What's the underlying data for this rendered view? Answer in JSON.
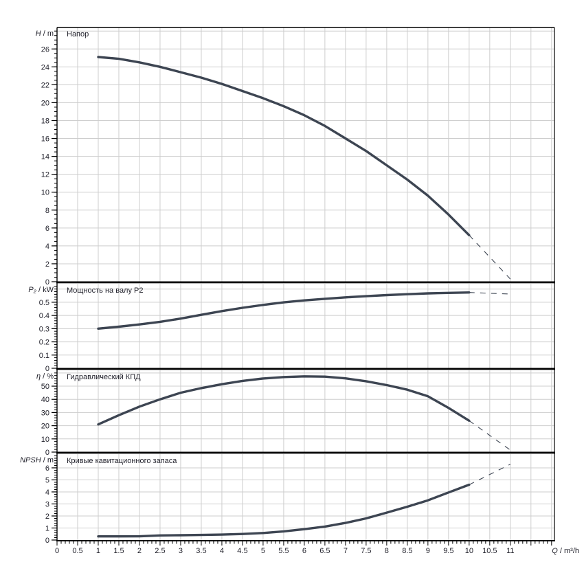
{
  "page": {
    "background": "#ffffff"
  },
  "colors": {
    "curve": "#3d4552",
    "grid": "#cdcdcd",
    "axis": "#000000",
    "text": "#1e1e28"
  },
  "x_axis": {
    "label": "Q / m³/h",
    "min": 0,
    "max": 12.07,
    "major_step": 0.5,
    "minor_step": 0.1,
    "tick_labels": [
      "0",
      "0.5",
      "1",
      "1.5",
      "2",
      "2.5",
      "3",
      "3.5",
      "4",
      "4.5",
      "5",
      "5.5",
      "6",
      "6.5",
      "7",
      "7.5",
      "8",
      "8.5",
      "9",
      "9.5",
      "10",
      "10.5",
      "11"
    ]
  },
  "chart_data": [
    {
      "type": "line",
      "name": "head",
      "title": "Напор",
      "ylabel": "H / m",
      "xlabel": "Q / m³/h",
      "ylim": [
        0,
        28.4
      ],
      "y_major_step": 2,
      "y_minor_step": 0.5,
      "y_grid_max": 28,
      "grid": true,
      "y_tick_labels": [
        "0",
        "2",
        "4",
        "6",
        "8",
        "10",
        "12",
        "14",
        "16",
        "18",
        "20",
        "22",
        "24",
        "26"
      ],
      "series": [
        {
          "name": "head-curve",
          "style": "solid",
          "x": [
            1,
            1.5,
            2,
            2.5,
            3,
            3.5,
            4,
            4.5,
            5,
            5.5,
            6,
            6.5,
            7,
            7.5,
            8,
            8.5,
            9,
            9.5,
            10
          ],
          "y": [
            25.1,
            24.9,
            24.5,
            24.0,
            23.4,
            22.8,
            22.1,
            21.3,
            20.5,
            19.6,
            18.6,
            17.4,
            16.0,
            14.6,
            13.0,
            11.4,
            9.6,
            7.5,
            5.2
          ]
        },
        {
          "name": "head-curve-extrapolated",
          "style": "dashed",
          "x": [
            10,
            11
          ],
          "y": [
            5.2,
            0.3
          ]
        }
      ]
    },
    {
      "type": "line",
      "name": "power",
      "title": "Мощность на валу P2",
      "ylabel": "P₂ / kW",
      "xlabel": "Q / m³/h",
      "ylim": [
        0,
        0.64
      ],
      "y_major_step": 0.1,
      "y_minor_step": 0.02,
      "y_grid_max": 0.6,
      "grid": true,
      "y_tick_labels": [
        "0",
        "0.1",
        "0.2",
        "0.3",
        "0.4",
        "0.5"
      ],
      "series": [
        {
          "name": "power-curve",
          "style": "solid",
          "x": [
            1,
            1.5,
            2,
            2.5,
            3,
            3.5,
            4,
            4.5,
            5,
            5.5,
            6,
            6.5,
            7,
            7.5,
            8,
            8.5,
            9,
            9.5,
            10
          ],
          "y": [
            0.3,
            0.315,
            0.332,
            0.352,
            0.376,
            0.405,
            0.433,
            0.458,
            0.48,
            0.499,
            0.514,
            0.526,
            0.537,
            0.546,
            0.554,
            0.561,
            0.567,
            0.571,
            0.574
          ]
        },
        {
          "name": "power-curve-extrapolated",
          "style": "dashed",
          "x": [
            10,
            11
          ],
          "y": [
            0.574,
            0.562
          ]
        }
      ]
    },
    {
      "type": "line",
      "name": "efficiency",
      "title": "Гидравлический КПД",
      "ylabel": "η / %",
      "xlabel": "Q / m³/h",
      "ylim": [
        0,
        62
      ],
      "y_major_step": 10,
      "y_minor_step": 2,
      "y_grid_max": 60,
      "grid": true,
      "y_tick_labels": [
        "0",
        "10",
        "20",
        "30",
        "40",
        "50"
      ],
      "series": [
        {
          "name": "efficiency-curve",
          "style": "solid",
          "x": [
            1,
            1.5,
            2,
            2.5,
            3,
            3.5,
            4,
            4.5,
            5,
            5.5,
            6,
            6.5,
            7,
            7.5,
            8,
            8.5,
            9,
            9.5,
            10
          ],
          "y": [
            21,
            28,
            34.5,
            40,
            45,
            48.5,
            51.5,
            54,
            55.8,
            56.9,
            57.4,
            57.2,
            55.9,
            53.7,
            50.8,
            47.3,
            42.3,
            33.5,
            23.8
          ]
        },
        {
          "name": "efficiency-curve-extrapolated",
          "style": "dashed",
          "x": [
            10,
            11
          ],
          "y": [
            23.8,
            1.5
          ]
        }
      ]
    },
    {
      "type": "line",
      "name": "npsh",
      "title": "Кривые кавитационного запаса",
      "ylabel": "NPSH / m",
      "xlabel": "Q / m³/h",
      "ylim": [
        0,
        7.14
      ],
      "y_major_step": 1,
      "y_minor_step": 0.2,
      "y_grid_max": 6,
      "grid": true,
      "y_tick_labels": [
        "0",
        "1",
        "2",
        "3",
        "4",
        "5",
        "6"
      ],
      "series": [
        {
          "name": "npsh-curve",
          "style": "solid",
          "x": [
            1,
            1.5,
            2,
            2.5,
            3,
            3.5,
            4,
            4.5,
            5,
            5.5,
            6,
            6.5,
            7,
            7.5,
            8,
            8.5,
            9,
            9.5,
            10
          ],
          "y": [
            0.3,
            0.3,
            0.31,
            0.38,
            0.4,
            0.42,
            0.45,
            0.5,
            0.58,
            0.72,
            0.9,
            1.12,
            1.42,
            1.8,
            2.28,
            2.77,
            3.3,
            3.95,
            4.6
          ]
        },
        {
          "name": "npsh-curve-extrapolated",
          "style": "dashed",
          "x": [
            10,
            11
          ],
          "y": [
            4.6,
            6.3
          ]
        }
      ]
    }
  ]
}
